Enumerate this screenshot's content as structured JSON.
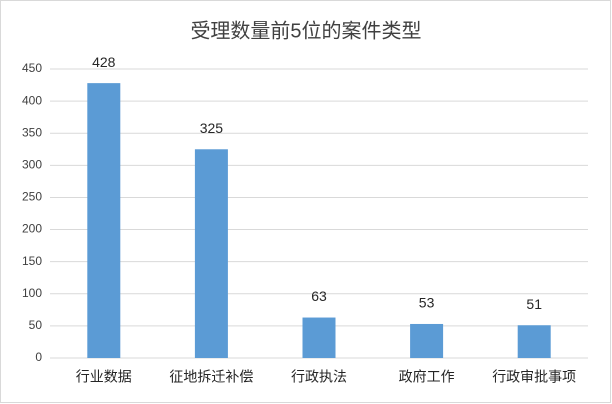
{
  "chart_data": {
    "type": "bar",
    "title": "受理数量前5位的案件类型",
    "categories": [
      "行业数据",
      "征地拆迁补偿",
      "行政执法",
      "政府工作",
      "行政审批事项"
    ],
    "values": [
      428,
      325,
      63,
      53,
      51
    ],
    "color": "#5b9bd5",
    "ylim": [
      0,
      450
    ],
    "yticks": [
      0,
      50,
      100,
      150,
      200,
      250,
      300,
      350,
      400,
      450
    ],
    "grid": true
  }
}
